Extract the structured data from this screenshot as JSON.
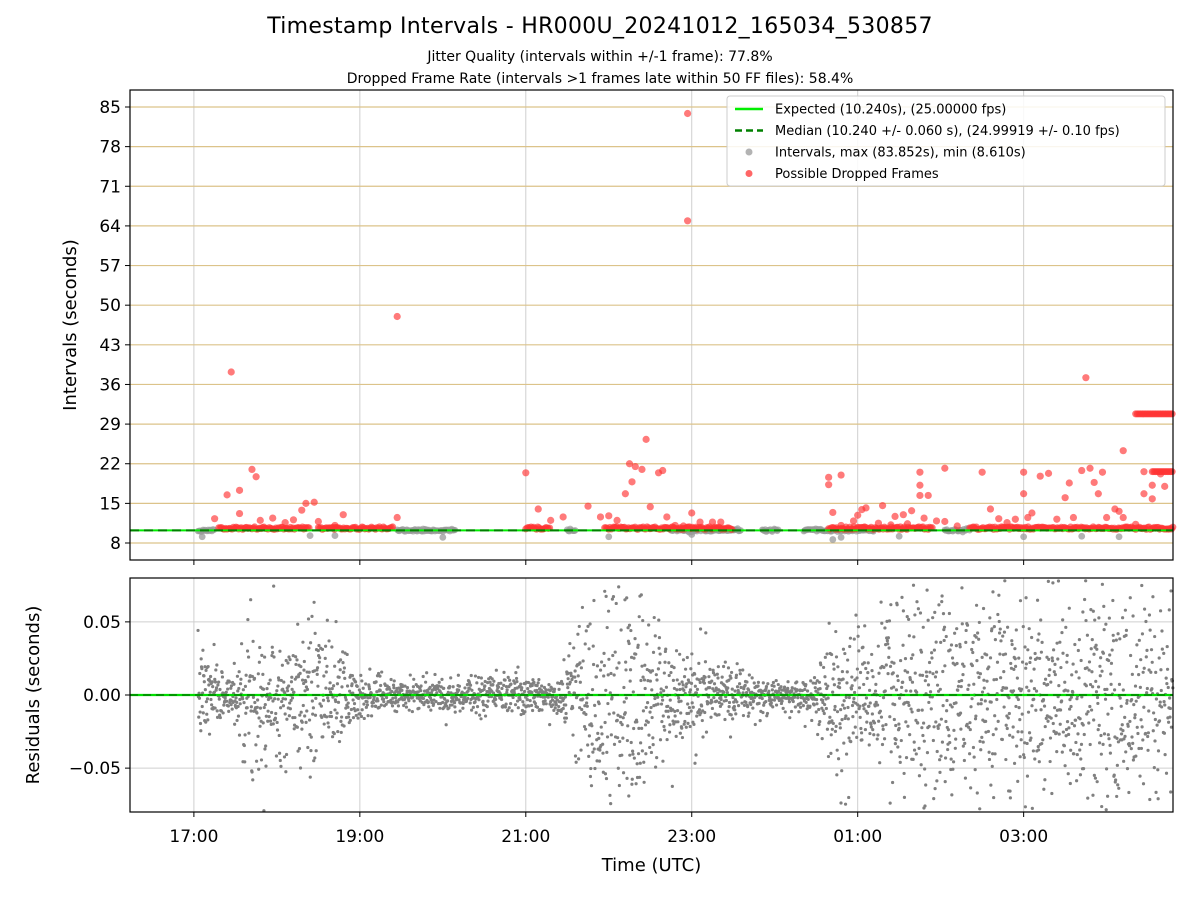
{
  "chart_data": [
    {
      "type": "scatter",
      "title": "Timestamp Intervals - HR000U_20241012_165034_530857",
      "subtitles": [
        "Jitter Quality (intervals within +/-1 frame): 77.8%",
        "Dropped Frame Rate (intervals >1 frames late within 50 FF files): 58.4%"
      ],
      "xlabel": "",
      "ylabel": "Intervals (seconds)",
      "x_unit": "hours since 00:00 UTC (negative = previous day)",
      "xlim": [
        -7.77,
        4.8
      ],
      "ylim": [
        5,
        88
      ],
      "x_ticks": [
        -7,
        -5,
        -3,
        -1,
        1,
        3
      ],
      "y_ticks": [
        8,
        15,
        22,
        29,
        36,
        43,
        50,
        57,
        64,
        71,
        78,
        85
      ],
      "y_tick_labels": [
        "8",
        "15",
        "22",
        "29",
        "36",
        "43",
        "50",
        "57",
        "64",
        "71",
        "78",
        "85"
      ],
      "hgrid_color": "#dcc38a",
      "vgrid_color": "#cfcfcf",
      "legend_position": "top-right",
      "legend": [
        {
          "label": "Expected (10.240s), (25.00000 fps)",
          "style": "solid-line",
          "color": "#00ee00"
        },
        {
          "label": "Median (10.240 +/- 0.060 s), (24.99919 +/- 0.10 fps)",
          "style": "dashed-line",
          "color": "#008000"
        },
        {
          "label": "Intervals, max (83.852s), min (8.610s)",
          "style": "marker",
          "color": "#999999"
        },
        {
          "label": "Possible Dropped Frames",
          "style": "marker",
          "color": "#ff3333"
        }
      ],
      "expected_interval": 10.24,
      "median_interval": 10.24,
      "series": [
        {
          "name": "Intervals, max (83.852s), min (8.610s)",
          "color": "#999999",
          "segments": [
            [
              -6.95,
              -6.75
            ],
            [
              -4.55,
              -3.85
            ],
            [
              -2.5,
              -2.4
            ],
            [
              -1.25,
              -0.4
            ],
            [
              -0.15,
              0.05
            ],
            [
              0.35,
              1.2
            ],
            [
              2.05,
              2.35
            ]
          ],
          "low_points": [
            [
              -6.9,
              9.1
            ],
            [
              -5.6,
              9.3
            ],
            [
              -5.3,
              9.3
            ],
            [
              -4.0,
              9.0
            ],
            [
              -2.0,
              9.1
            ],
            [
              -1.0,
              9.5
            ],
            [
              0.7,
              8.61
            ],
            [
              0.8,
              9.0
            ],
            [
              1.5,
              9.2
            ],
            [
              3.0,
              9.1
            ],
            [
              3.7,
              9.2
            ],
            [
              4.15,
              9.1
            ]
          ]
        },
        {
          "name": "Possible Dropped Frames",
          "color": "#ff3333",
          "segments": [
            [
              -6.7,
              -5.6
            ],
            [
              -5.5,
              -4.6
            ],
            [
              -3.0,
              -2.7
            ],
            [
              -2.05,
              -0.5
            ],
            [
              0.65,
              1.9
            ],
            [
              2.35,
              4.8
            ]
          ],
          "high_segments": [
            [
              4.35,
              4.8,
              30.8
            ],
            [
              4.55,
              4.8,
              20.6
            ]
          ],
          "outliers": [
            [
              -6.75,
              12.3
            ],
            [
              -6.6,
              16.5
            ],
            [
              -6.45,
              17.3
            ],
            [
              -6.45,
              13.2
            ],
            [
              -6.3,
              21.0
            ],
            [
              -6.25,
              19.7
            ],
            [
              -6.2,
              12.0
            ],
            [
              -6.05,
              12.4
            ],
            [
              -5.9,
              11.6
            ],
            [
              -5.8,
              12.1
            ],
            [
              -5.7,
              13.8
            ],
            [
              -5.65,
              15.0
            ],
            [
              -5.55,
              15.2
            ],
            [
              -5.5,
              11.8
            ],
            [
              -5.3,
              11.1
            ],
            [
              -5.2,
              13.0
            ],
            [
              -4.55,
              12.5
            ],
            [
              -3.0,
              20.4
            ],
            [
              -2.85,
              14.0
            ],
            [
              -2.7,
              12.0
            ],
            [
              -2.55,
              12.6
            ],
            [
              -2.25,
              14.5
            ],
            [
              -2.1,
              12.6
            ],
            [
              -2.0,
              12.8
            ],
            [
              -1.9,
              12.0
            ],
            [
              -1.8,
              16.7
            ],
            [
              -1.75,
              22.0
            ],
            [
              -1.72,
              18.8
            ],
            [
              -1.68,
              21.5
            ],
            [
              -1.6,
              21.0
            ],
            [
              -1.5,
              14.4
            ],
            [
              -1.4,
              20.4
            ],
            [
              -1.35,
              20.8
            ],
            [
              -1.3,
              12.6
            ],
            [
              -1.2,
              11.1
            ],
            [
              -1.1,
              11.0
            ],
            [
              -1.0,
              13.3
            ],
            [
              -0.9,
              11.7
            ],
            [
              -0.75,
              11.7
            ],
            [
              -0.65,
              11.7
            ],
            [
              0.65,
              19.6
            ],
            [
              0.65,
              18.3
            ],
            [
              0.7,
              13.4
            ],
            [
              0.8,
              11.1
            ],
            [
              0.8,
              20.0
            ],
            [
              0.95,
              11.9
            ],
            [
              1.0,
              12.9
            ],
            [
              1.05,
              13.9
            ],
            [
              1.1,
              14.2
            ],
            [
              1.25,
              11.5
            ],
            [
              1.3,
              14.6
            ],
            [
              1.4,
              11.2
            ],
            [
              1.45,
              12.7
            ],
            [
              1.55,
              13.0
            ],
            [
              1.6,
              11.4
            ],
            [
              1.65,
              13.7
            ],
            [
              1.75,
              20.5
            ],
            [
              1.75,
              18.2
            ],
            [
              1.75,
              16.4
            ],
            [
              1.8,
              12.4
            ],
            [
              1.85,
              16.4
            ],
            [
              1.95,
              11.9
            ],
            [
              2.05,
              11.8
            ],
            [
              2.05,
              21.2
            ],
            [
              2.2,
              11.0
            ],
            [
              2.5,
              20.5
            ],
            [
              2.6,
              14.0
            ],
            [
              2.7,
              12.3
            ],
            [
              2.8,
              11.6
            ],
            [
              2.9,
              12.2
            ],
            [
              3.0,
              16.7
            ],
            [
              3.0,
              20.5
            ],
            [
              3.05,
              12.5
            ],
            [
              3.1,
              13.3
            ],
            [
              3.2,
              19.8
            ],
            [
              3.3,
              20.3
            ],
            [
              3.4,
              12.2
            ],
            [
              3.5,
              16.0
            ],
            [
              3.55,
              18.6
            ],
            [
              3.6,
              12.5
            ],
            [
              3.7,
              20.8
            ],
            [
              3.8,
              21.2
            ],
            [
              3.85,
              18.7
            ],
            [
              3.9,
              16.7
            ],
            [
              3.95,
              20.5
            ],
            [
              4.0,
              12.5
            ],
            [
              4.1,
              14.0
            ],
            [
              4.15,
              13.6
            ],
            [
              4.2,
              12.5
            ],
            [
              4.35,
              11.3
            ],
            [
              4.45,
              16.7
            ],
            [
              4.45,
              20.6
            ],
            [
              4.55,
              18.2
            ],
            [
              4.55,
              15.8
            ],
            [
              4.65,
              20.2
            ],
            [
              4.7,
              18.0
            ],
            [
              4.2,
              24.3
            ],
            [
              -6.55,
              38.2
            ],
            [
              -4.55,
              48.0
            ],
            [
              -1.55,
              26.3
            ],
            [
              3.75,
              37.2
            ],
            [
              -1.05,
              64.9
            ],
            [
              -1.05,
              83.85
            ]
          ]
        }
      ]
    },
    {
      "type": "scatter",
      "title": "",
      "xlabel": "Time (UTC)",
      "ylabel": "Residuals (seconds)",
      "x_unit": "hours since 00:00 UTC (negative = previous day)",
      "xlim": [
        -7.77,
        4.8
      ],
      "ylim": [
        -0.08,
        0.08
      ],
      "x_ticks": [
        -7,
        -5,
        -3,
        -1,
        1,
        3
      ],
      "x_tick_labels": [
        "17:00",
        "19:00",
        "21:00",
        "23:00",
        "01:00",
        "03:00"
      ],
      "y_ticks": [
        -0.05,
        0.0,
        0.05
      ],
      "y_tick_labels": [
        "−0.05",
        "0.00",
        "0.05"
      ],
      "grid": true,
      "zero_line_color": "#00dd00",
      "point_color": "#808080",
      "spread_profile": [
        {
          "x": -6.9,
          "sd": 0.02
        },
        {
          "x": -6.6,
          "sd": 0.008
        },
        {
          "x": -6.3,
          "sd": 0.035
        },
        {
          "x": -5.9,
          "sd": 0.025
        },
        {
          "x": -5.5,
          "sd": 0.035
        },
        {
          "x": -5.0,
          "sd": 0.01
        },
        {
          "x": -4.5,
          "sd": 0.006
        },
        {
          "x": -3.5,
          "sd": 0.008
        },
        {
          "x": -2.6,
          "sd": 0.008
        },
        {
          "x": -2.2,
          "sd": 0.045
        },
        {
          "x": -1.6,
          "sd": 0.05
        },
        {
          "x": -1.1,
          "sd": 0.02
        },
        {
          "x": -0.6,
          "sd": 0.012
        },
        {
          "x": 0.0,
          "sd": 0.006
        },
        {
          "x": 0.5,
          "sd": 0.01
        },
        {
          "x": 0.7,
          "sd": 0.03
        },
        {
          "x": 1.2,
          "sd": 0.03
        },
        {
          "x": 1.6,
          "sd": 0.045
        },
        {
          "x": 2.2,
          "sd": 0.045
        },
        {
          "x": 3.0,
          "sd": 0.05
        },
        {
          "x": 3.6,
          "sd": 0.045
        },
        {
          "x": 4.2,
          "sd": 0.05
        },
        {
          "x": 4.8,
          "sd": 0.05
        }
      ]
    }
  ]
}
